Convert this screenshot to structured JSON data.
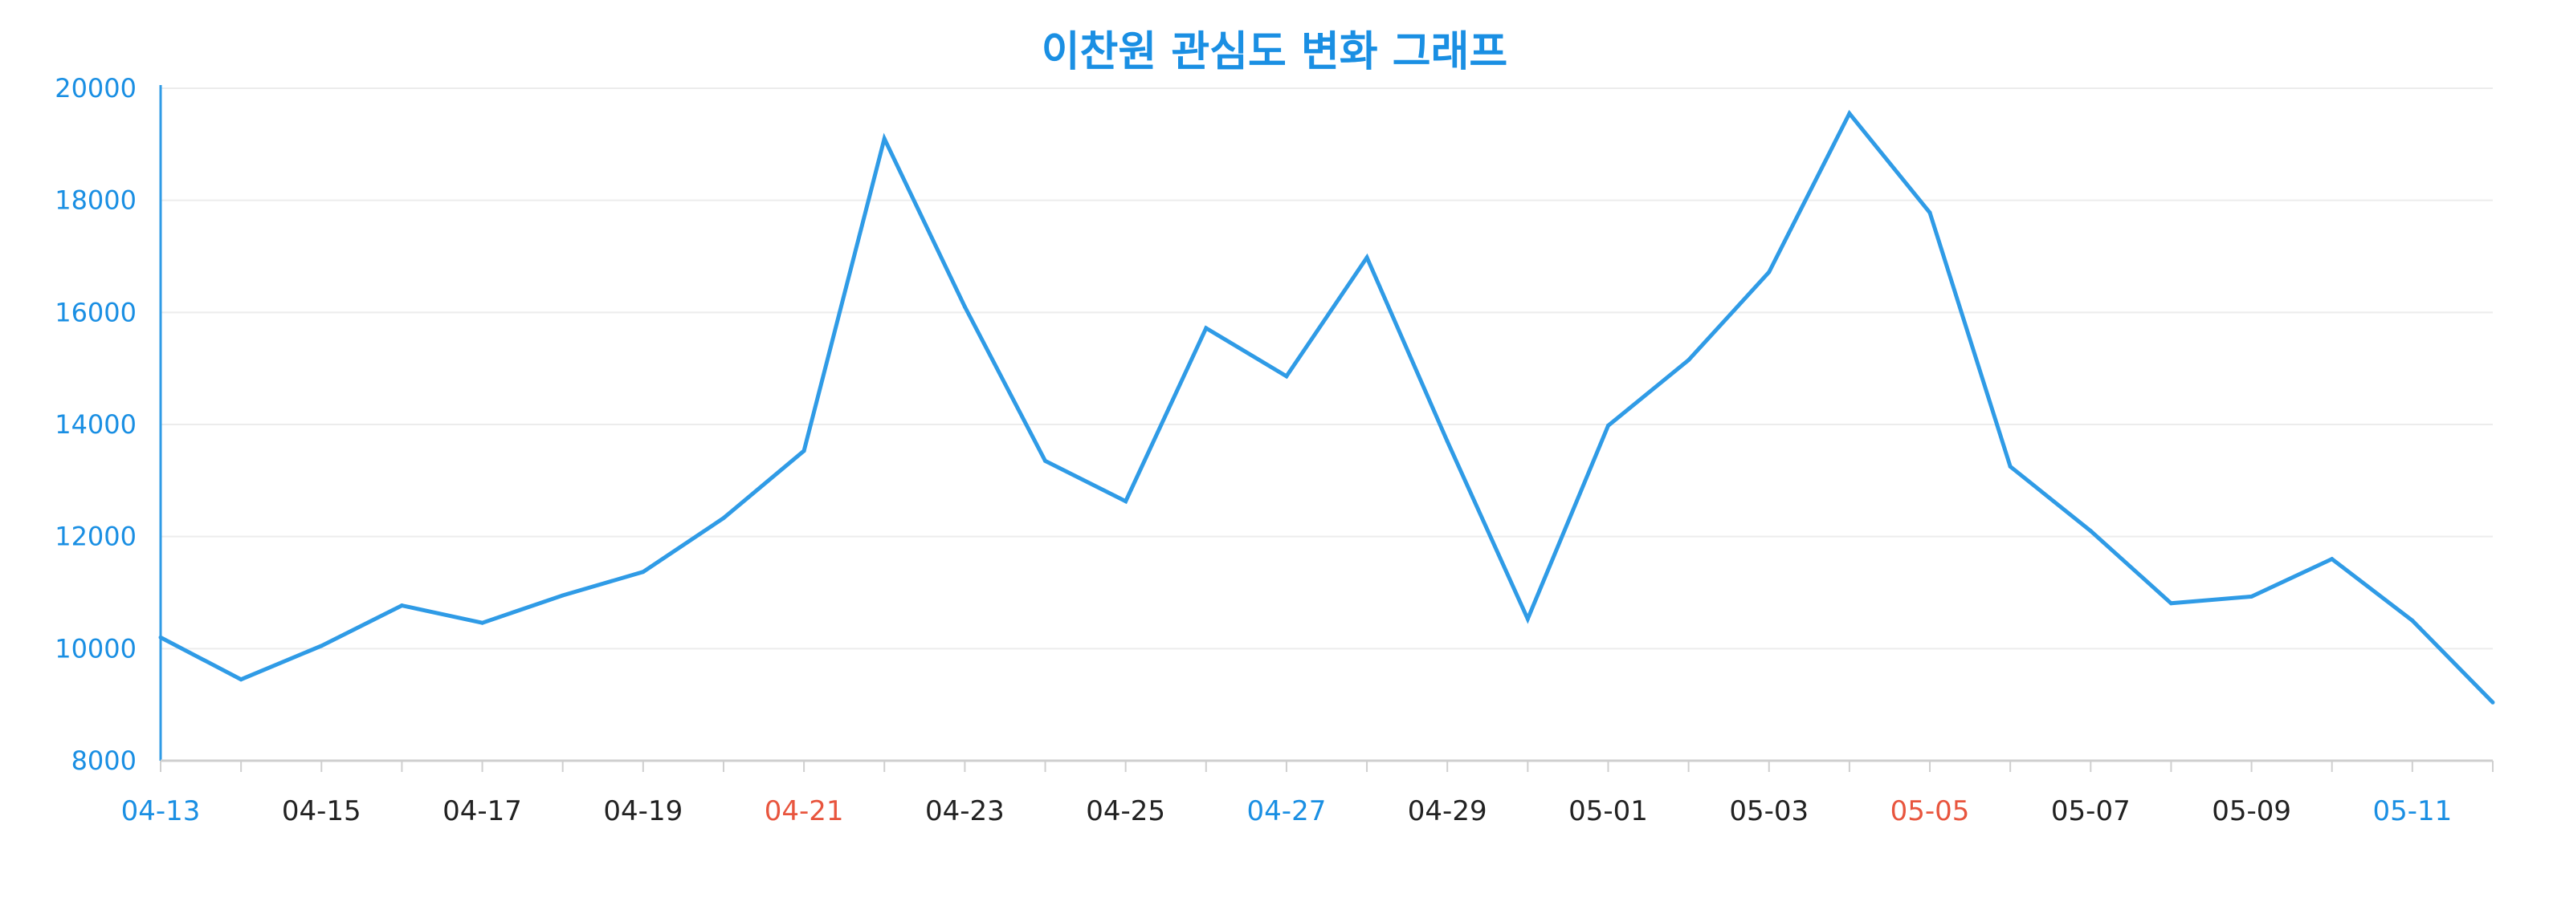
{
  "chart_data": {
    "type": "line",
    "title": "이찬원 관심도 변화 그래프",
    "xlabel": "",
    "ylabel": "",
    "ylim": [
      8000,
      20000
    ],
    "yticks": [
      8000,
      10000,
      12000,
      14000,
      16000,
      18000,
      20000
    ],
    "grid": true,
    "x": [
      "04-13",
      "04-14",
      "04-15",
      "04-16",
      "04-17",
      "04-18",
      "04-19",
      "04-20",
      "04-21",
      "04-22",
      "04-23",
      "04-24",
      "04-25",
      "04-26",
      "04-27",
      "04-28",
      "04-29",
      "04-30",
      "05-01",
      "05-02",
      "05-03",
      "05-04",
      "05-05",
      "05-06",
      "05-07",
      "05-08",
      "05-09",
      "05-10",
      "05-11",
      "05-12"
    ],
    "x_tick_labels": [
      {
        "label": "04-13",
        "color": "#1a8fe3"
      },
      {
        "label": "04-15",
        "color": "#222222"
      },
      {
        "label": "04-17",
        "color": "#222222"
      },
      {
        "label": "04-19",
        "color": "#222222"
      },
      {
        "label": "04-21",
        "color": "#e8553e"
      },
      {
        "label": "04-23",
        "color": "#222222"
      },
      {
        "label": "04-25",
        "color": "#222222"
      },
      {
        "label": "04-27",
        "color": "#1a8fe3"
      },
      {
        "label": "04-29",
        "color": "#222222"
      },
      {
        "label": "05-01",
        "color": "#222222"
      },
      {
        "label": "05-03",
        "color": "#222222"
      },
      {
        "label": "05-05",
        "color": "#e8553e"
      },
      {
        "label": "05-07",
        "color": "#222222"
      },
      {
        "label": "05-09",
        "color": "#222222"
      },
      {
        "label": "05-11",
        "color": "#1a8fe3"
      }
    ],
    "series": [
      {
        "color": "#2f9be6",
        "values": [
          10200,
          9450,
          10050,
          10770,
          10460,
          10950,
          11370,
          12330,
          13530,
          19100,
          16100,
          13350,
          12630,
          15720,
          14860,
          16980,
          13700,
          10530,
          13980,
          15150,
          16720,
          19550,
          17780,
          13250,
          12100,
          10810,
          10930,
          11600,
          10500,
          9040
        ]
      }
    ]
  }
}
